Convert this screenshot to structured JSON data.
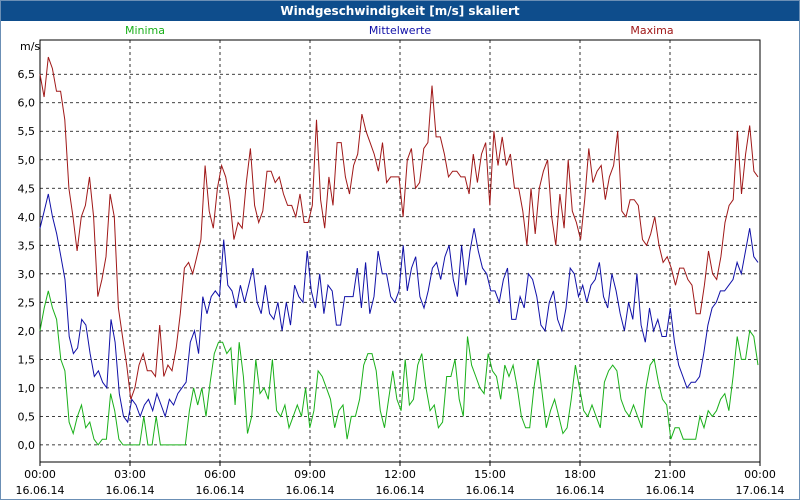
{
  "window": {
    "title": "Windgeschwindigkeit [m/s] skaliert"
  },
  "chart_data": {
    "type": "line",
    "title": "Windgeschwindigkeit [m/s] skaliert",
    "ylabel": "m/s",
    "xlabel": "",
    "ylim": [
      -0.3,
      7.1
    ],
    "xlim": [
      0,
      24
    ],
    "grid": true,
    "y_ticks": [
      {
        "value": 0.0,
        "label": "0,0"
      },
      {
        "value": 0.5,
        "label": "0,5"
      },
      {
        "value": 1.0,
        "label": "1,0"
      },
      {
        "value": 1.5,
        "label": "1,5"
      },
      {
        "value": 2.0,
        "label": "2,0"
      },
      {
        "value": 2.5,
        "label": "2,5"
      },
      {
        "value": 3.0,
        "label": "3,0"
      },
      {
        "value": 3.5,
        "label": "3,5"
      },
      {
        "value": 4.0,
        "label": "4,0"
      },
      {
        "value": 4.5,
        "label": "4,5"
      },
      {
        "value": 5.0,
        "label": "5,0"
      },
      {
        "value": 5.5,
        "label": "5,5"
      },
      {
        "value": 6.0,
        "label": "6,0"
      },
      {
        "value": 6.5,
        "label": "6,5"
      }
    ],
    "x_ticks": [
      {
        "value": 0,
        "time": "00:00",
        "date": "16.06.14"
      },
      {
        "value": 3,
        "time": "03:00",
        "date": "16.06.14"
      },
      {
        "value": 6,
        "time": "06:00",
        "date": "16.06.14"
      },
      {
        "value": 9,
        "time": "09:00",
        "date": "16.06.14"
      },
      {
        "value": 12,
        "time": "12:00",
        "date": "16.06.14"
      },
      {
        "value": 15,
        "time": "15:00",
        "date": "16.06.14"
      },
      {
        "value": 18,
        "time": "18:00",
        "date": "16.06.14"
      },
      {
        "value": 21,
        "time": "21:00",
        "date": "16.06.14"
      },
      {
        "value": 24,
        "time": "00:00",
        "date": "17.06.14"
      }
    ],
    "series": [
      {
        "name": "Minima",
        "color": "#1ab01a",
        "legend_position": "top-left",
        "values": [
          2.0,
          2.4,
          2.7,
          2.4,
          2.2,
          1.5,
          1.3,
          0.4,
          0.2,
          0.5,
          0.7,
          0.3,
          0.4,
          0.1,
          0.0,
          0.1,
          0.1,
          0.9,
          0.6,
          0.1,
          0.0,
          0.0,
          0.0,
          0.0,
          0.0,
          0.5,
          0.0,
          0.0,
          0.5,
          0.0,
          0.0,
          0.0,
          0.0,
          0.0,
          0.0,
          0.0,
          0.6,
          1.0,
          0.7,
          1.0,
          0.5,
          1.1,
          1.6,
          1.8,
          1.8,
          1.6,
          1.7,
          0.7,
          1.8,
          1.2,
          0.2,
          0.5,
          1.5,
          0.9,
          1.0,
          0.8,
          1.5,
          0.6,
          0.5,
          0.7,
          0.3,
          0.5,
          0.7,
          0.5,
          1.0,
          0.3,
          0.6,
          1.3,
          1.2,
          1.0,
          0.8,
          0.3,
          0.6,
          0.7,
          0.1,
          0.5,
          0.5,
          0.8,
          1.4,
          1.6,
          1.6,
          1.3,
          0.6,
          0.3,
          0.8,
          1.3,
          0.8,
          0.6,
          1.5,
          0.7,
          0.8,
          1.4,
          1.6,
          1.0,
          0.6,
          0.7,
          0.3,
          0.4,
          1.2,
          1.2,
          1.5,
          0.8,
          0.5,
          1.9,
          1.4,
          1.2,
          1.0,
          0.9,
          1.6,
          1.3,
          1.2,
          0.8,
          1.4,
          1.2,
          1.4,
          1.0,
          0.5,
          0.3,
          0.3,
          1.0,
          1.5,
          0.9,
          0.3,
          0.6,
          0.8,
          0.5,
          0.2,
          0.3,
          0.8,
          1.4,
          1.0,
          0.6,
          0.5,
          0.7,
          0.5,
          0.3,
          1.1,
          1.3,
          1.4,
          1.3,
          0.8,
          0.6,
          0.5,
          0.7,
          0.5,
          0.3,
          1.0,
          1.4,
          1.5,
          1.1,
          0.8,
          0.7,
          0.1,
          0.3,
          0.3,
          0.1,
          0.1,
          0.1,
          0.1,
          0.5,
          0.3,
          0.6,
          0.5,
          0.6,
          0.8,
          0.9,
          0.6,
          1.2,
          1.9,
          1.5,
          1.5,
          2.0,
          1.9,
          1.4
        ]
      },
      {
        "name": "Mittelwerte",
        "color": "#1010a8",
        "legend_position": "top-center",
        "values": [
          3.8,
          4.1,
          4.4,
          4.0,
          3.7,
          3.3,
          2.9,
          1.9,
          1.6,
          1.7,
          2.2,
          2.1,
          1.6,
          1.2,
          1.3,
          1.1,
          1.0,
          2.2,
          1.8,
          0.9,
          0.5,
          0.4,
          0.8,
          0.7,
          0.5,
          0.7,
          0.8,
          0.6,
          0.9,
          0.7,
          0.5,
          0.8,
          0.7,
          0.9,
          1.0,
          1.1,
          1.8,
          2.0,
          1.6,
          2.6,
          2.3,
          2.6,
          2.7,
          2.6,
          3.6,
          2.8,
          2.7,
          2.4,
          2.8,
          2.5,
          2.8,
          3.1,
          2.5,
          2.3,
          2.8,
          2.3,
          2.2,
          2.5,
          2.0,
          2.5,
          2.1,
          2.8,
          2.6,
          2.5,
          3.4,
          2.7,
          2.4,
          3.0,
          2.3,
          2.8,
          2.7,
          2.1,
          2.1,
          2.6,
          2.6,
          2.6,
          3.1,
          2.4,
          3.2,
          2.3,
          2.6,
          3.4,
          3.0,
          3.0,
          2.6,
          2.5,
          2.7,
          3.5,
          2.7,
          3.1,
          3.3,
          2.6,
          2.4,
          2.7,
          3.1,
          3.2,
          2.9,
          3.3,
          3.5,
          2.9,
          2.6,
          3.5,
          2.8,
          3.4,
          3.8,
          3.4,
          3.1,
          3.0,
          2.7,
          2.7,
          2.5,
          2.9,
          3.1,
          2.2,
          2.2,
          2.6,
          2.4,
          3.0,
          2.9,
          2.6,
          2.1,
          2.0,
          2.5,
          2.7,
          2.2,
          2.0,
          2.4,
          3.1,
          3.0,
          2.6,
          2.8,
          2.5,
          2.8,
          2.9,
          3.2,
          2.6,
          2.4,
          3.0,
          2.7,
          2.3,
          2.0,
          2.5,
          2.2,
          3.0,
          2.1,
          1.8,
          2.4,
          2.0,
          2.2,
          1.9,
          1.9,
          2.4,
          1.8,
          1.4,
          1.2,
          1.0,
          1.1,
          1.1,
          1.2,
          1.6,
          2.1,
          2.4,
          2.5,
          2.7,
          2.7,
          2.8,
          2.9,
          3.2,
          3.0,
          3.4,
          3.8,
          3.3,
          3.2
        ]
      },
      {
        "name": "Maxima",
        "color": "#a01818",
        "legend_position": "top-right",
        "values": [
          6.5,
          6.1,
          6.8,
          6.6,
          6.2,
          6.2,
          5.7,
          4.5,
          4.0,
          3.4,
          4.0,
          4.2,
          4.7,
          4.0,
          2.6,
          2.9,
          3.3,
          4.4,
          4.0,
          2.4,
          1.9,
          1.4,
          0.8,
          1.0,
          1.4,
          1.6,
          1.3,
          1.3,
          1.2,
          2.1,
          1.2,
          1.4,
          1.3,
          1.7,
          2.3,
          3.1,
          3.2,
          3.0,
          3.3,
          3.6,
          4.9,
          4.1,
          3.8,
          4.5,
          4.9,
          4.7,
          4.3,
          3.6,
          3.9,
          3.8,
          4.6,
          5.2,
          4.2,
          3.9,
          4.1,
          4.8,
          4.8,
          4.6,
          4.7,
          4.4,
          4.2,
          4.2,
          4.0,
          4.4,
          3.9,
          3.9,
          4.2,
          5.7,
          4.3,
          3.8,
          4.7,
          4.2,
          5.3,
          5.3,
          4.7,
          4.4,
          4.9,
          5.1,
          5.8,
          5.5,
          5.3,
          5.1,
          4.8,
          5.3,
          4.6,
          4.7,
          4.7,
          4.7,
          4.0,
          5.0,
          5.2,
          4.5,
          4.6,
          5.2,
          5.3,
          6.3,
          5.4,
          5.4,
          5.1,
          4.7,
          4.8,
          4.8,
          4.7,
          4.7,
          4.4,
          5.1,
          4.6,
          5.1,
          5.3,
          4.2,
          5.5,
          4.9,
          5.4,
          4.9,
          5.1,
          4.5,
          4.5,
          4.1,
          3.5,
          4.5,
          3.7,
          4.5,
          4.8,
          5.0,
          4.0,
          3.5,
          4.4,
          3.8,
          5.0,
          4.1,
          3.9,
          3.6,
          4.3,
          5.2,
          4.6,
          4.8,
          4.9,
          4.3,
          4.7,
          4.9,
          5.5,
          4.1,
          4.0,
          4.3,
          4.3,
          4.2,
          3.6,
          3.5,
          3.7,
          4.0,
          3.5,
          3.2,
          3.3,
          3.1,
          2.8,
          3.1,
          3.1,
          2.9,
          2.8,
          2.3,
          2.3,
          2.8,
          3.4,
          3.0,
          2.9,
          3.3,
          3.9,
          4.2,
          4.3,
          5.5,
          4.4,
          5.1,
          5.6,
          4.8,
          4.7
        ]
      }
    ]
  }
}
